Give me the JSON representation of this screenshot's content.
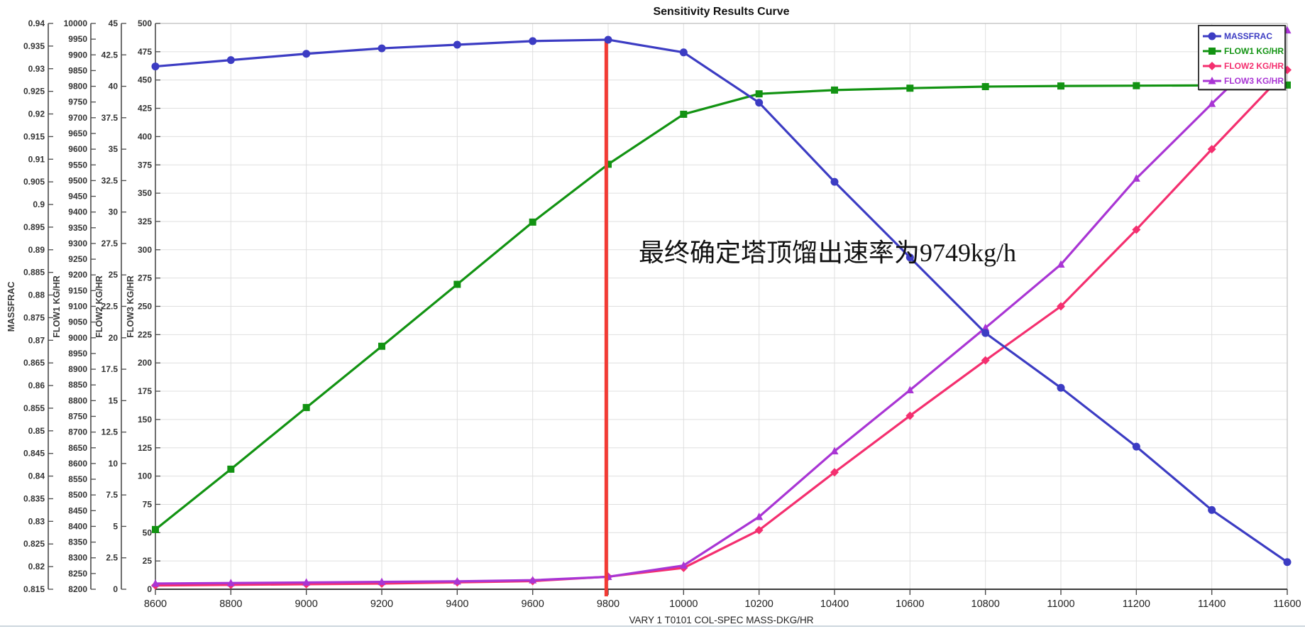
{
  "chart_data": {
    "type": "line",
    "title": "Sensitivity Results Curve",
    "xlabel": "VARY  1 T0101 COL-SPEC MASS-DKG/HR",
    "x_range": [
      8600,
      11600
    ],
    "x_tick_step": 200,
    "x": [
      8600,
      8800,
      9000,
      9200,
      9400,
      9600,
      9800,
      10000,
      10200,
      10400,
      10600,
      10800,
      11000,
      11200,
      11400,
      11600
    ],
    "grid": "on",
    "legend_position": "top-right",
    "axes": [
      {
        "name": "MASSFRAC",
        "range": [
          0.815,
          0.94
        ],
        "tick": 0.005
      },
      {
        "name": "FLOW1 KG/HR",
        "range": [
          8200,
          10000
        ],
        "tick": 50
      },
      {
        "name": "FLOW2 KG/HR",
        "range": [
          0,
          45
        ],
        "tick": 2.5
      },
      {
        "name": "FLOW3 KG/HR",
        "range": [
          0,
          500
        ],
        "tick": 25
      }
    ],
    "series": [
      {
        "name": "MASSFRAC",
        "axis": 0,
        "color": "#3c3cc3",
        "marker": "circle",
        "values": [
          0.9305,
          0.9319,
          0.9333,
          0.9345,
          0.9353,
          0.9361,
          0.9364,
          0.9336,
          0.9225,
          0.905,
          0.8883,
          0.8716,
          0.8595,
          0.8465,
          0.8325,
          0.821
        ]
      },
      {
        "name": "FLOW1 KG/HR",
        "axis": 1,
        "color": "#129312",
        "marker": "square",
        "values": [
          8390,
          8582,
          8778,
          8973,
          9170,
          9368,
          9552,
          9711,
          9776,
          9788,
          9794,
          9799,
          9801,
          9802,
          9803,
          9804
        ]
      },
      {
        "name": "FLOW2 KG/HR",
        "axis": 2,
        "color": "#f42f6f",
        "marker": "diamond",
        "values": [
          0.3,
          0.35,
          0.4,
          0.45,
          0.55,
          0.65,
          1.0,
          1.7,
          4.7,
          9.3,
          13.8,
          18.2,
          22.5,
          28.6,
          35.0,
          41.3
        ]
      },
      {
        "name": "FLOW3 KG/HR",
        "axis": 3,
        "color": "#a935d4",
        "marker": "triangle",
        "values": [
          5,
          5.5,
          6,
          6.5,
          7,
          8,
          11,
          21,
          64,
          122,
          176,
          231,
          287,
          363,
          429,
          494
        ]
      }
    ],
    "red_line": {
      "marks_value": 9749,
      "draw_at_x": 9795,
      "color": "#f23b35"
    },
    "annotation": {
      "text": "最终确定塔顶馏出速率为9749kg/h"
    },
    "colors": {
      "grid": "#dfdfdf",
      "axis": "#4a4a4a",
      "tick_label": "#333333",
      "border": "#c8c8c8"
    }
  }
}
